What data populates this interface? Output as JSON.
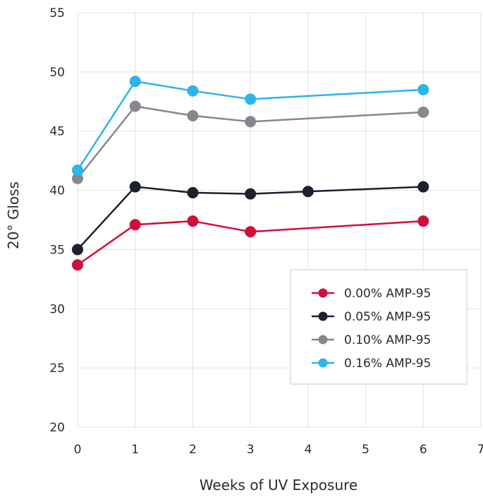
{
  "chart_data": {
    "type": "line",
    "title": "",
    "xlabel": "Weeks of UV Exposure",
    "ylabel": "20° Gloss",
    "xlim": [
      0,
      7
    ],
    "ylim": [
      20,
      55
    ],
    "xticks": [
      "0",
      "1",
      "2",
      "3",
      "4",
      "5",
      "6",
      "7"
    ],
    "yticks": [
      "20",
      "25",
      "30",
      "35",
      "40",
      "45",
      "50",
      "55"
    ],
    "grid": true,
    "legend_position": "bottom-right",
    "series": [
      {
        "name": "0.00% AMP-95",
        "color": "#d0103a",
        "x": [
          0,
          1,
          2,
          3,
          6
        ],
        "y": [
          33.7,
          37.1,
          37.4,
          36.5,
          37.4
        ]
      },
      {
        "name": "0.05% AMP-95",
        "color": "#1c2130",
        "x": [
          0,
          1,
          2,
          3,
          4,
          6
        ],
        "y": [
          35.0,
          40.3,
          39.8,
          39.7,
          39.9,
          40.3
        ]
      },
      {
        "name": "0.10% AMP-95",
        "color": "#86878f",
        "x": [
          0,
          1,
          2,
          3,
          6
        ],
        "y": [
          41.0,
          47.1,
          46.3,
          45.8,
          46.6
        ]
      },
      {
        "name": "0.16% AMP-95",
        "color": "#2bb5ea",
        "x": [
          0,
          1,
          2,
          3,
          6
        ],
        "y": [
          41.7,
          49.2,
          48.4,
          47.7,
          48.5
        ]
      }
    ]
  }
}
